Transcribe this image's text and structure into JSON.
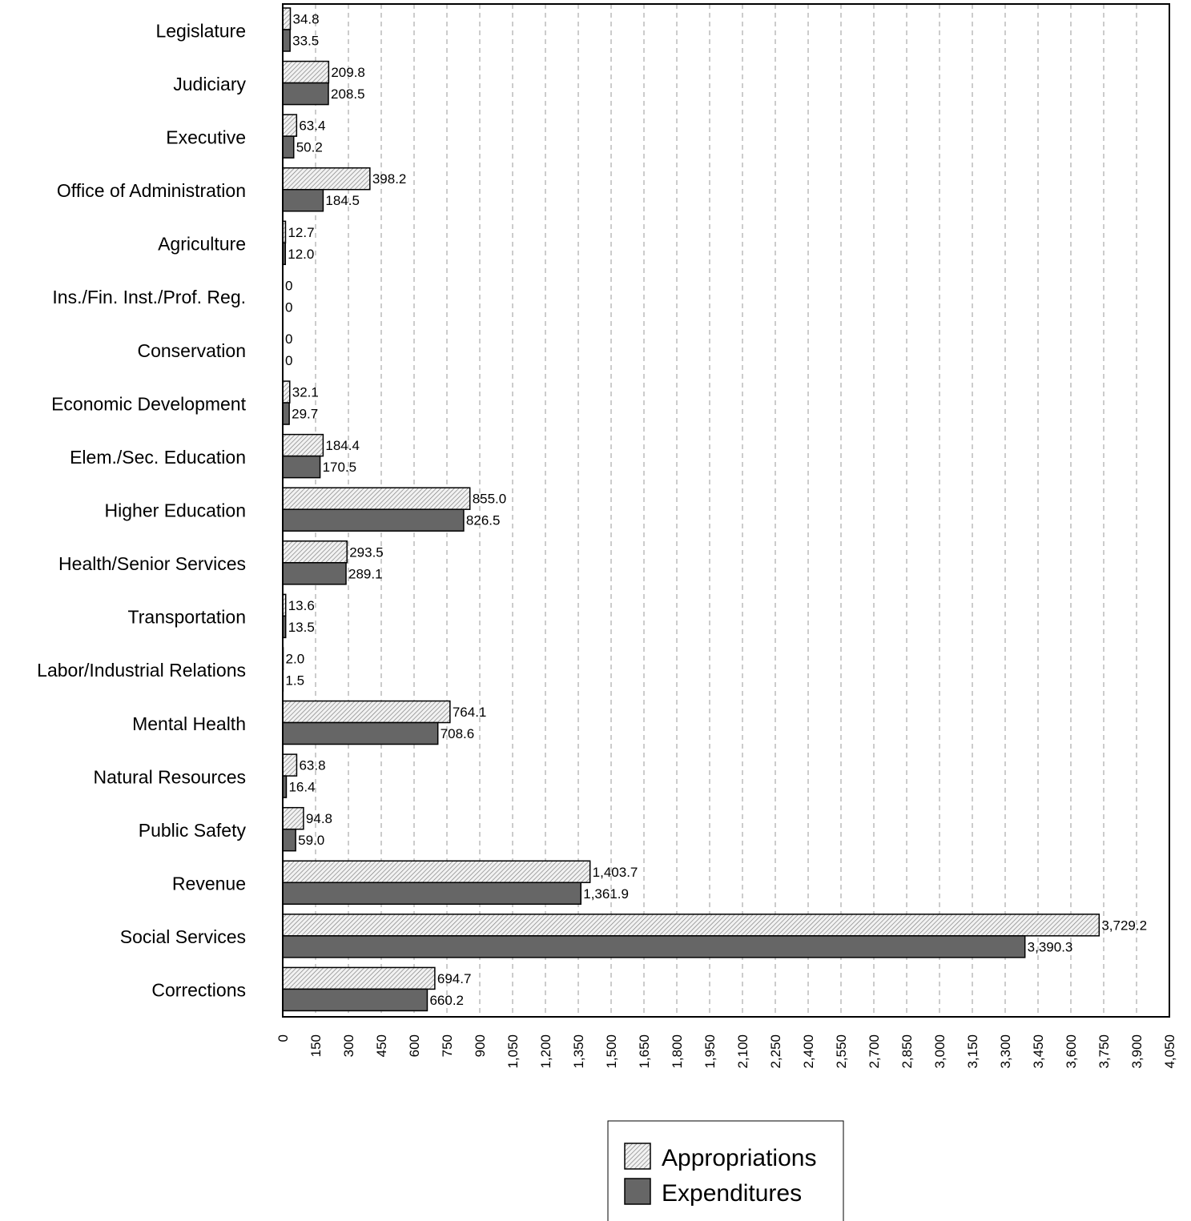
{
  "chart_data": {
    "type": "bar",
    "orientation": "horizontal",
    "categories": [
      "Legislature",
      "Judiciary",
      "Executive",
      "Office of Administration",
      "Agriculture",
      "Ins./Fin. Inst./Prof. Reg.",
      "Conservation",
      "Economic Development",
      "Elem./Sec. Education",
      "Higher Education",
      "Health/Senior Services",
      "Transportation",
      "Labor/Industrial Relations",
      "Mental Health",
      "Natural Resources",
      "Public Safety",
      "Revenue",
      "Social Services",
      "Corrections"
    ],
    "series": [
      {
        "name": "Appropriations",
        "color": "#d9d9d9",
        "pattern": "hatch",
        "values": [
          34.8,
          209.8,
          63.4,
          398.2,
          12.7,
          0,
          0,
          32.1,
          184.4,
          855.0,
          293.5,
          13.6,
          2.0,
          764.1,
          63.8,
          94.8,
          1403.7,
          3729.2,
          694.7
        ],
        "labels": [
          "34.8",
          "209.8",
          "63.4",
          "398.2",
          "12.7",
          "0",
          "0",
          "32.1",
          "184.4",
          "855.0",
          "293.5",
          "13.6",
          "2.0",
          "764.1",
          "63.8",
          "94.8",
          "1,403.7",
          "3,729.2",
          "694.7"
        ]
      },
      {
        "name": "Expenditures",
        "color": "#666666",
        "pattern": "solid",
        "values": [
          33.5,
          208.5,
          50.2,
          184.5,
          12.0,
          0,
          0,
          29.7,
          170.5,
          826.5,
          289.1,
          13.5,
          1.5,
          708.6,
          16.4,
          59.0,
          1361.9,
          3390.3,
          660.2
        ],
        "labels": [
          "33.5",
          "208.5",
          "50.2",
          "184.5",
          "12.0",
          "0",
          "0",
          "29.7",
          "170.5",
          "826.5",
          "289.1",
          "13.5",
          "1.5",
          "708.6",
          "16.4",
          "59.0",
          "1,361.9",
          "3,390.3",
          "660.2"
        ]
      }
    ],
    "xlim": [
      0,
      4050
    ],
    "tick_step": 150,
    "ticks": [
      "0",
      "150",
      "300",
      "450",
      "600",
      "750",
      "900",
      "1,050",
      "1,200",
      "1,350",
      "1,500",
      "1,650",
      "1,800",
      "1,950",
      "2,100",
      "2,250",
      "2,400",
      "2,550",
      "2,700",
      "2,850",
      "3,000",
      "3,150",
      "3,300",
      "3,450",
      "3,600",
      "3,750",
      "3,900",
      "4,050"
    ],
    "grid": "vertical dashed",
    "legend_placement": "bottom"
  }
}
